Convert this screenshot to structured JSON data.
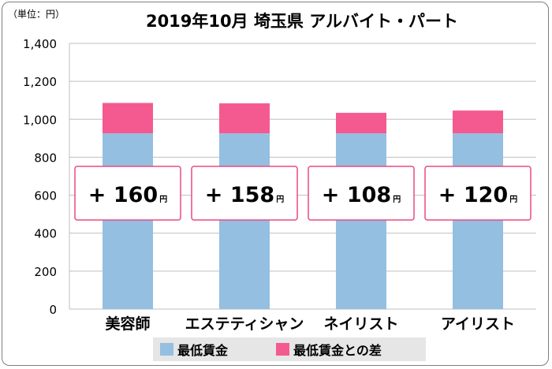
{
  "chart_data": {
    "type": "bar",
    "stacked": true,
    "title": "2019年10月 埼玉県 アルバイト・パート",
    "unit_label": "（単位：円）",
    "categories": [
      "美容師",
      "エステティシャン",
      "ネイリスト",
      "アイリスト"
    ],
    "series": [
      {
        "name": "最低賃金",
        "values": [
          926,
          926,
          926,
          926
        ],
        "color": "#95bfe0"
      },
      {
        "name": "最低賃金との差",
        "values": [
          160,
          158,
          108,
          120
        ],
        "color": "#f45a8f"
      }
    ],
    "diff_labels": [
      {
        "sign": "+",
        "value": "160",
        "unit": "円"
      },
      {
        "sign": "+",
        "value": "158",
        "unit": "円"
      },
      {
        "sign": "+",
        "value": "108",
        "unit": "円"
      },
      {
        "sign": "+",
        "value": "120",
        "unit": "円"
      }
    ],
    "ylim": [
      0,
      1400
    ],
    "yticks": [
      0,
      200,
      400,
      600,
      800,
      1000,
      1200,
      1400
    ],
    "ytick_labels": [
      "0",
      "200",
      "400",
      "600",
      "800",
      "1,000",
      "1,200",
      "1,400"
    ],
    "grid": true,
    "legend": "bottom"
  }
}
